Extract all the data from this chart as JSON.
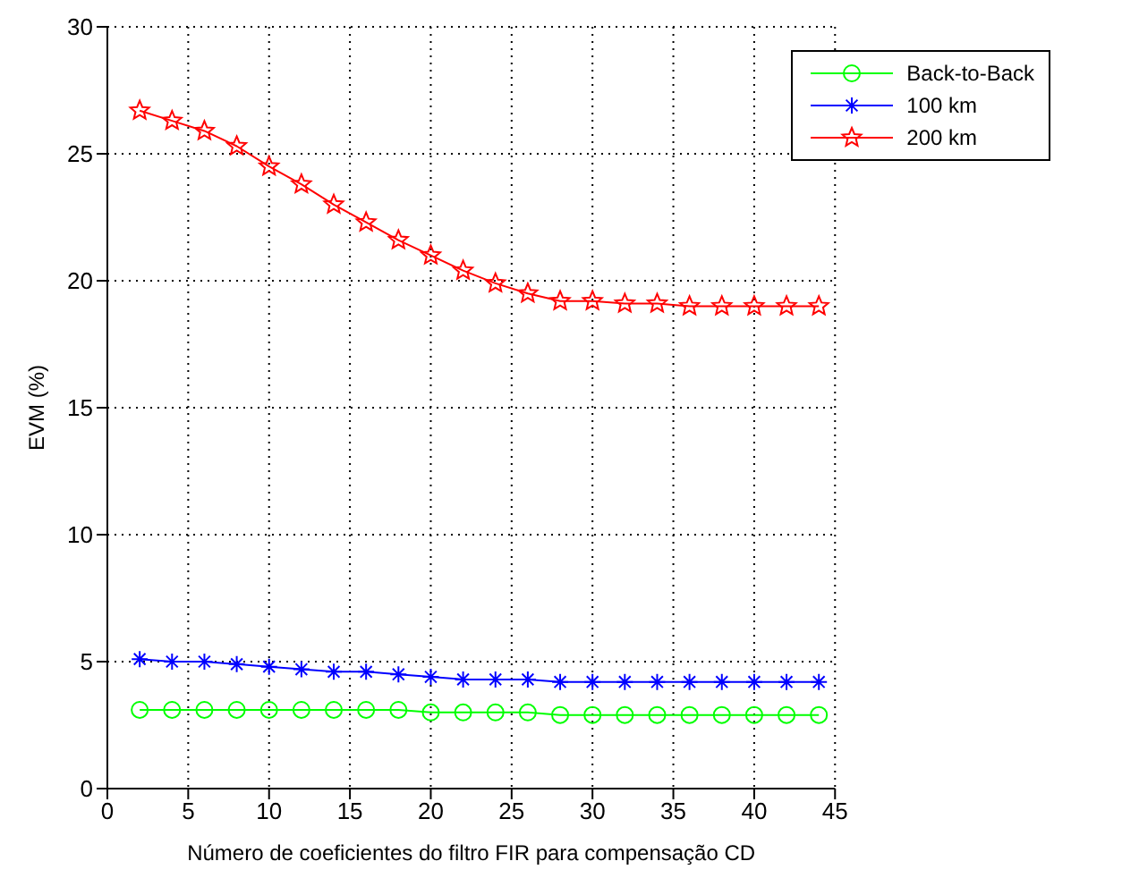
{
  "chart_data": {
    "type": "line",
    "xlabel": "Número de coeficientes do filtro FIR para compensação CD",
    "ylabel": "EVM (%)",
    "x": [
      2,
      4,
      6,
      8,
      10,
      12,
      14,
      16,
      18,
      20,
      22,
      24,
      26,
      28,
      30,
      32,
      34,
      36,
      38,
      40,
      42,
      44
    ],
    "series": [
      {
        "name": "Back-to-Back",
        "color": "#00ff00",
        "marker": "circle",
        "values": [
          3.1,
          3.1,
          3.1,
          3.1,
          3.1,
          3.1,
          3.1,
          3.1,
          3.1,
          3.0,
          3.0,
          3.0,
          3.0,
          2.9,
          2.9,
          2.9,
          2.9,
          2.9,
          2.9,
          2.9,
          2.9,
          2.9
        ]
      },
      {
        "name": "100 km",
        "color": "#0000ff",
        "marker": "cross",
        "values": [
          5.1,
          5.0,
          5.0,
          4.9,
          4.8,
          4.7,
          4.6,
          4.6,
          4.5,
          4.4,
          4.3,
          4.3,
          4.3,
          4.2,
          4.2,
          4.2,
          4.2,
          4.2,
          4.2,
          4.2,
          4.2,
          4.2
        ]
      },
      {
        "name": "200 km",
        "color": "#ff0000",
        "marker": "star",
        "values": [
          26.7,
          26.3,
          25.9,
          25.3,
          24.5,
          23.8,
          23.0,
          22.3,
          21.6,
          21.0,
          20.4,
          19.9,
          19.5,
          19.2,
          19.2,
          19.1,
          19.1,
          19.0,
          19.0,
          19.0,
          19.0,
          19.0
        ]
      }
    ],
    "xlim": [
      0,
      45
    ],
    "xticks": [
      0,
      5,
      10,
      15,
      20,
      25,
      30,
      35,
      40,
      45
    ],
    "ylim": [
      0,
      30
    ],
    "yticks": [
      0,
      5,
      10,
      15,
      20,
      25,
      30
    ],
    "grid": true,
    "legend": "top right",
    "line_style": "solid"
  }
}
